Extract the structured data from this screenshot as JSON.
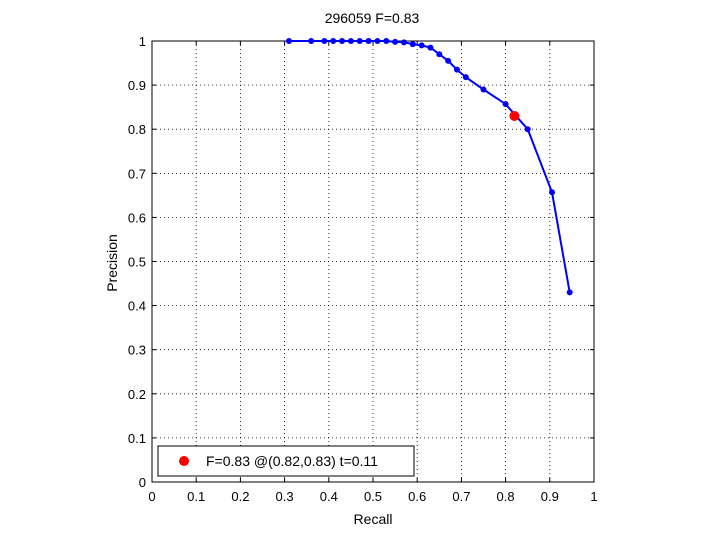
{
  "chart_data": {
    "type": "line",
    "title": "296059 F=0.83",
    "xlabel": "Recall",
    "ylabel": "Precision",
    "xlim": [
      0,
      1
    ],
    "ylim": [
      0,
      1
    ],
    "xticks": [
      "0",
      "0.1",
      "0.2",
      "0.3",
      "0.4",
      "0.5",
      "0.6",
      "0.7",
      "0.8",
      "0.9",
      "1"
    ],
    "yticks": [
      "0",
      "0.1",
      "0.2",
      "0.3",
      "0.4",
      "0.5",
      "0.6",
      "0.7",
      "0.8",
      "0.9",
      "1"
    ],
    "grid": true,
    "legend_position": "bottom-left",
    "colors": {
      "curve": "#0000ff",
      "marker": "#0000ff",
      "best": "#ff0000"
    },
    "series": [
      {
        "x": [
          0.31,
          0.36,
          0.39,
          0.41,
          0.43,
          0.45,
          0.47,
          0.49,
          0.51,
          0.53,
          0.55,
          0.57,
          0.59,
          0.61,
          0.63,
          0.65,
          0.67,
          0.69,
          0.71,
          0.75,
          0.8,
          0.85,
          0.905,
          0.945
        ],
        "y": [
          1.0,
          1.0,
          1.0,
          1.0,
          1.0,
          1.0,
          1.0,
          1.0,
          1.0,
          1.0,
          0.998,
          0.997,
          0.993,
          0.99,
          0.985,
          0.97,
          0.955,
          0.935,
          0.918,
          0.89,
          0.857,
          0.8,
          0.657,
          0.43
        ]
      }
    ],
    "best_point": {
      "x": 0.82,
      "y": 0.83
    },
    "legend": [
      "F=0.83 @(0.82,0.83) t=0.11"
    ]
  }
}
